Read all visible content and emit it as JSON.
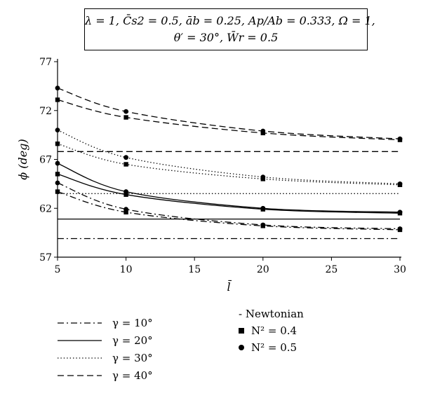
{
  "annotation": {
    "line1": "λ = 1, C̄s2 = 0.5, āb = 0.25, Ap/Ab = 0.333, Ω = 1,",
    "line2": "θ′ = 30°, W̄r = 0.5"
  },
  "chart_data": {
    "type": "line",
    "xlabel": "l̄",
    "ylabel": "ϕ (deg)",
    "xlim": [
      5,
      30
    ],
    "ylim": [
      57,
      77
    ],
    "xticks": [
      5,
      10,
      15,
      20,
      25,
      30
    ],
    "yticks": [
      57,
      62,
      67,
      72,
      77
    ],
    "grid": false,
    "legend_position": "bottom-left",
    "line_styles": [
      {
        "label": "γ = 10°",
        "dash": "dashdot"
      },
      {
        "label": "γ = 20°",
        "dash": "solid"
      },
      {
        "label": "γ = 30°",
        "dash": "dotted"
      },
      {
        "label": "γ = 40°",
        "dash": "dashed"
      }
    ],
    "marker_legend": [
      {
        "label": "- Newtonian",
        "marker": "none"
      },
      {
        "label": "N² = 0.4",
        "marker": "square"
      },
      {
        "label": "N² = 0.5",
        "marker": "circle"
      }
    ],
    "series": [
      {
        "gamma": 10,
        "type": "newtonian",
        "x": [
          5,
          30
        ],
        "y": [
          58.9,
          58.9
        ]
      },
      {
        "gamma": 20,
        "type": "newtonian",
        "x": [
          5,
          30
        ],
        "y": [
          60.9,
          60.9
        ]
      },
      {
        "gamma": 30,
        "type": "newtonian",
        "x": [
          5,
          30
        ],
        "y": [
          63.5,
          63.5
        ]
      },
      {
        "gamma": 40,
        "type": "newtonian",
        "x": [
          5,
          30
        ],
        "y": [
          67.8,
          67.8
        ]
      },
      {
        "gamma": 10,
        "type": "N2=0.4",
        "x": [
          5,
          10,
          20,
          30
        ],
        "y": [
          63.7,
          61.6,
          60.2,
          59.8
        ]
      },
      {
        "gamma": 10,
        "type": "N2=0.5",
        "x": [
          5,
          10,
          20,
          30
        ],
        "y": [
          64.6,
          61.9,
          60.3,
          59.9
        ]
      },
      {
        "gamma": 20,
        "type": "N2=0.4",
        "x": [
          5,
          10,
          20,
          30
        ],
        "y": [
          65.5,
          63.4,
          61.9,
          61.5
        ]
      },
      {
        "gamma": 20,
        "type": "N2=0.5",
        "x": [
          5,
          10,
          20,
          30
        ],
        "y": [
          66.6,
          63.7,
          62.0,
          61.6
        ]
      },
      {
        "gamma": 30,
        "type": "N2=0.4",
        "x": [
          5,
          10,
          20,
          30
        ],
        "y": [
          68.6,
          66.5,
          65.0,
          64.4
        ]
      },
      {
        "gamma": 30,
        "type": "N2=0.5",
        "x": [
          5,
          10,
          20,
          30
        ],
        "y": [
          70.0,
          67.2,
          65.2,
          64.5
        ]
      },
      {
        "gamma": 40,
        "type": "N2=0.4",
        "x": [
          5,
          10,
          20,
          30
        ],
        "y": [
          73.1,
          71.3,
          69.7,
          69.0
        ]
      },
      {
        "gamma": 40,
        "type": "N2=0.5",
        "x": [
          5,
          10,
          20,
          30
        ],
        "y": [
          74.3,
          71.9,
          69.9,
          69.1
        ]
      }
    ]
  }
}
